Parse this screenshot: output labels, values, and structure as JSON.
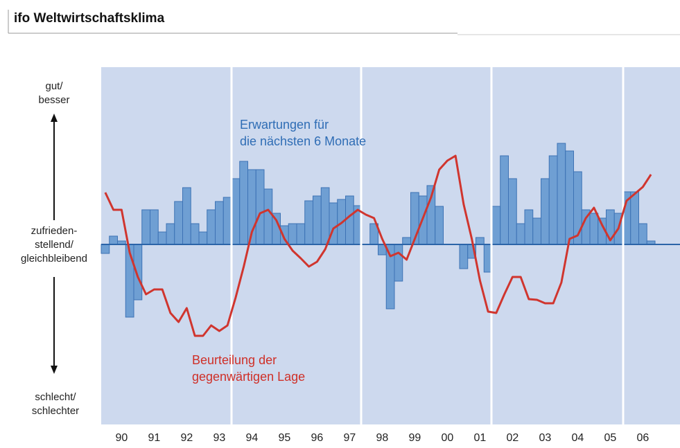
{
  "chart_data": {
    "type": "bar_line",
    "title": "ifo Weltwirtschaftsklima",
    "y_labels": {
      "top": "gut/\nbesser",
      "middle": "zufrieden-\nstellend/\ngleichbleibend",
      "bottom": "schlecht/\nschlechter"
    },
    "categories": [
      null,
      null,
      "90",
      null,
      null,
      null,
      "91",
      null,
      null,
      null,
      "92",
      null,
      null,
      null,
      "93",
      null,
      null,
      null,
      "94",
      null,
      null,
      null,
      "95",
      null,
      null,
      null,
      "96",
      null,
      null,
      null,
      "97",
      null,
      null,
      null,
      "98",
      null,
      null,
      null,
      "99",
      null,
      null,
      null,
      "00",
      null,
      null,
      null,
      "01",
      null,
      null,
      null,
      "02",
      null,
      null,
      null,
      "03",
      null,
      null,
      null,
      "04",
      null,
      null,
      null,
      "05",
      null,
      null,
      null,
      "06",
      null
    ],
    "ylim": [
      -260,
      256
    ],
    "series": [
      {
        "name": "Erwartungen für\ndie nächsten 6 Monate",
        "kind": "bar",
        "color": "#6f9fd3",
        "values": [
          -13,
          12,
          5,
          -105,
          -80,
          50,
          50,
          18,
          30,
          62,
          82,
          30,
          18,
          50,
          62,
          68,
          95,
          120,
          108,
          108,
          80,
          45,
          27,
          30,
          30,
          63,
          70,
          82,
          60,
          65,
          70,
          56,
          0,
          30,
          -15,
          -93,
          -53,
          10,
          75,
          70,
          85,
          55,
          0,
          0,
          -35,
          -20,
          10,
          -40,
          55,
          128,
          95,
          30,
          50,
          38,
          95,
          128,
          146,
          135,
          105,
          50,
          45,
          38,
          50,
          45,
          76,
          76,
          30,
          5
        ]
      },
      {
        "name": "Beurteilung der\ngegenwärtigen Lage",
        "kind": "line",
        "color": "#d0352e",
        "values": [
          75,
          50,
          50,
          -12,
          -47,
          -72,
          -65,
          -65,
          -99,
          -112,
          -92,
          -132,
          -132,
          -117,
          -125,
          -117,
          -77,
          -32,
          18,
          45,
          50,
          35,
          8,
          -9,
          -20,
          -32,
          -25,
          -7,
          23,
          31,
          41,
          50,
          43,
          38,
          8,
          -17,
          -12,
          -22,
          8,
          38,
          68,
          108,
          121,
          128,
          58,
          8,
          -52,
          -97,
          -99,
          -72,
          -47,
          -47,
          -79,
          -80,
          -85,
          -85,
          -55,
          8,
          13,
          38,
          53,
          28,
          6,
          23,
          63,
          73,
          83,
          101
        ]
      }
    ]
  }
}
